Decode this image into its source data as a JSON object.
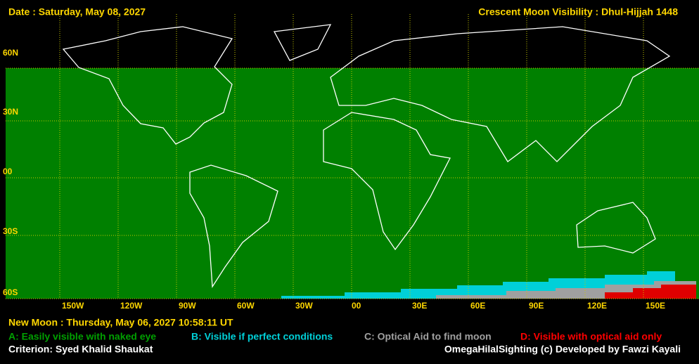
{
  "header": {
    "date": "Date : Saturday, May 08, 2027",
    "title": "Crescent Moon Visibility : Dhul-Hijjah  1448"
  },
  "map": {
    "lat_labels": [
      "60N",
      "30N",
      "00",
      "30S",
      "60S"
    ],
    "lon_labels": [
      "150W",
      "120W",
      "90W",
      "60W",
      "30W",
      "00",
      "30E",
      "60E",
      "90E",
      "120E",
      "150E"
    ]
  },
  "footer": {
    "new_moon": "New Moon : Thursday, May 06, 2027  10:58:11  UT",
    "legend": [
      "A: Easily visible with naked eye",
      "B: Visible if perfect conditions",
      "C: Optical Aid to find moon",
      "D: Visible with optical aid only"
    ],
    "criterion": "Criterion: Syed Khalid Shaukat",
    "credit": "OmegaHilalSighting  (c)  Developed by Fawzi Kayali"
  }
}
